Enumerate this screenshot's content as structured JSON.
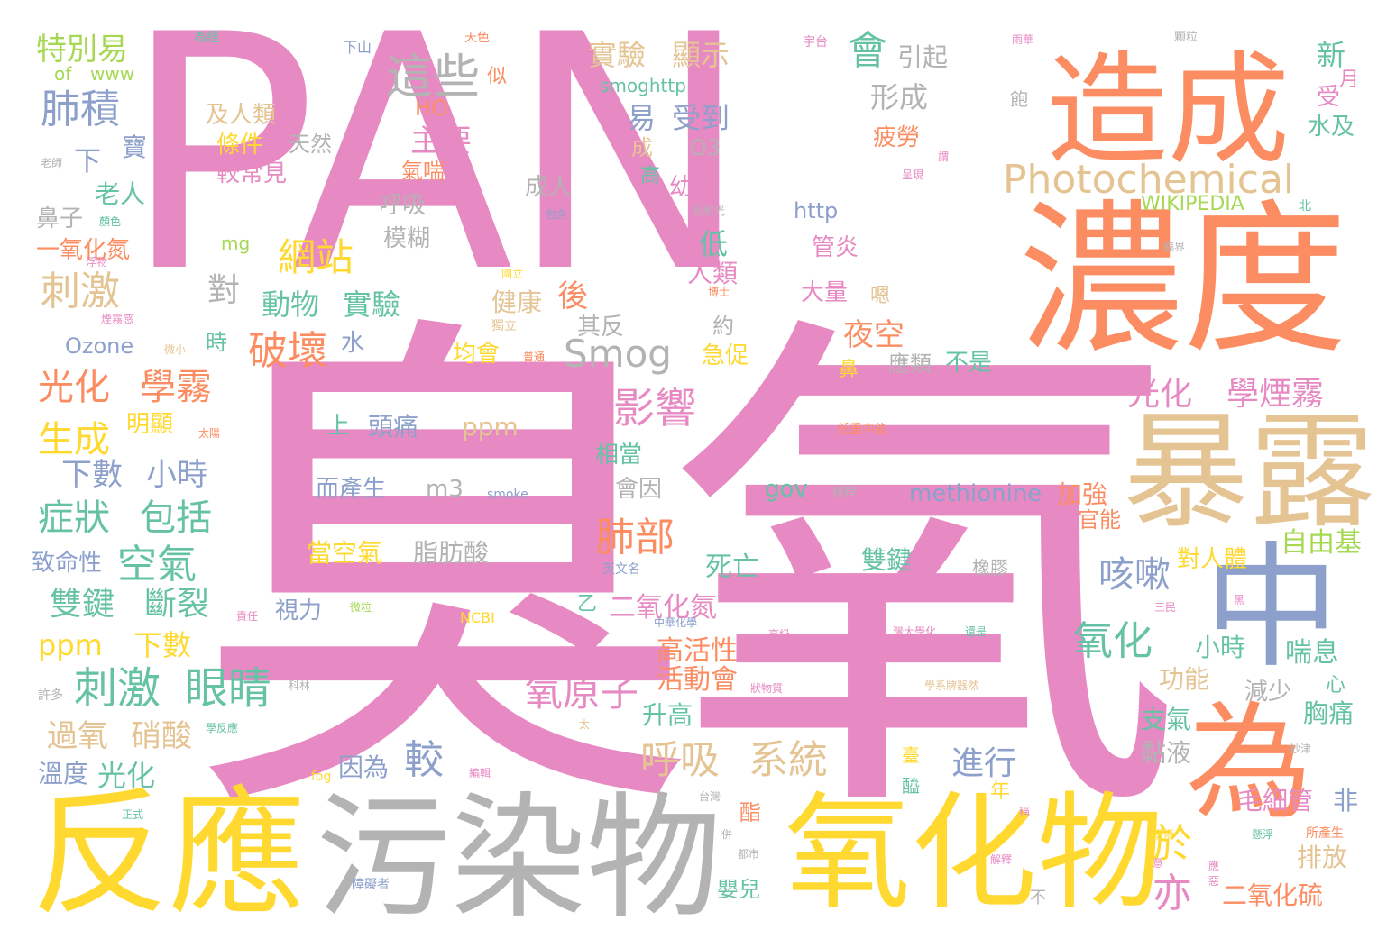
{
  "wordcloud": {
    "palette": {
      "pink": "#e78ac3",
      "orange": "#fc8d62",
      "green": "#66c2a5",
      "blue": "#8da0cb",
      "lime": "#a6d854",
      "yellow": "#ffd92f",
      "tan": "#e5c494",
      "gray": "#b3b3b3"
    },
    "words": [
      {
        "text": "PAN",
        "color": "pink"
      },
      {
        "text": "臭氧",
        "color": "pink"
      },
      {
        "text": "造成",
        "color": "orange"
      },
      {
        "text": "濃度",
        "color": "orange"
      },
      {
        "text": "暴露",
        "color": "tan"
      },
      {
        "text": "中",
        "color": "blue"
      },
      {
        "text": "為",
        "color": "orange"
      },
      {
        "text": "反應",
        "color": "yellow"
      },
      {
        "text": "污染物",
        "color": "gray"
      },
      {
        "text": "氧化物",
        "color": "yellow"
      },
      {
        "text": "Photochemical",
        "color": "tan"
      },
      {
        "text": "這些",
        "color": "gray"
      },
      {
        "text": "會",
        "color": "green"
      },
      {
        "text": "特別易",
        "color": "lime"
      },
      {
        "text": "肺積",
        "color": "blue"
      },
      {
        "text": "實驗",
        "color": "tan"
      },
      {
        "text": "顯示",
        "color": "tan"
      },
      {
        "text": "引起",
        "color": "gray"
      },
      {
        "text": "新",
        "color": "green"
      },
      {
        "text": "形成",
        "color": "gray"
      },
      {
        "text": "易",
        "color": "blue"
      },
      {
        "text": "受到",
        "color": "blue"
      },
      {
        "text": "主要",
        "color": "pink"
      },
      {
        "text": "網站",
        "color": "yellow"
      },
      {
        "text": "刺激",
        "color": "tan"
      },
      {
        "text": "對",
        "color": "gray"
      },
      {
        "text": "動物",
        "color": "green"
      },
      {
        "text": "實驗",
        "color": "green"
      },
      {
        "text": "破壞",
        "color": "orange"
      },
      {
        "text": "Smog",
        "color": "gray"
      },
      {
        "text": "光化",
        "color": "orange"
      },
      {
        "text": "學霧",
        "color": "orange"
      },
      {
        "text": "生成",
        "color": "yellow"
      },
      {
        "text": "影響",
        "color": "pink"
      },
      {
        "text": "下數",
        "color": "blue"
      },
      {
        "text": "小時",
        "color": "blue"
      },
      {
        "text": "症狀",
        "color": "green"
      },
      {
        "text": "包括",
        "color": "green"
      },
      {
        "text": "空氣",
        "color": "green"
      },
      {
        "text": "雙鍵",
        "color": "green"
      },
      {
        "text": "斷裂",
        "color": "green"
      },
      {
        "text": "肺部",
        "color": "orange"
      },
      {
        "text": "咳嗽",
        "color": "blue"
      },
      {
        "text": "氧化",
        "color": "green"
      },
      {
        "text": "刺激",
        "color": "green"
      },
      {
        "text": "眼睛",
        "color": "green"
      },
      {
        "text": "呼吸",
        "color": "tan"
      },
      {
        "text": "系統",
        "color": "tan"
      },
      {
        "text": "光化",
        "color": "pink"
      },
      {
        "text": "學煙霧",
        "color": "pink"
      },
      {
        "text": "氧原子",
        "color": "pink"
      },
      {
        "text": "進行",
        "color": "blue"
      },
      {
        "text": "亦",
        "color": "pink"
      },
      {
        "text": "於",
        "color": "yellow"
      },
      {
        "text": "毛細管",
        "color": "pink"
      },
      {
        "text": "二氧化硫",
        "color": "orange"
      },
      {
        "text": "ppm",
        "color": "yellow"
      },
      {
        "text": "下數",
        "color": "yellow"
      },
      {
        "text": "過氧",
        "color": "tan"
      },
      {
        "text": "硝酸",
        "color": "tan"
      },
      {
        "text": "光化",
        "color": "green"
      },
      {
        "text": "溫度",
        "color": "blue"
      },
      {
        "text": "較",
        "color": "blue"
      },
      {
        "text": "因為",
        "color": "blue"
      },
      {
        "text": "methionine",
        "color": "blue"
      },
      {
        "text": "加強",
        "color": "orange"
      },
      {
        "text": "自由基",
        "color": "lime"
      },
      {
        "text": "對人體",
        "color": "yellow"
      },
      {
        "text": "官能",
        "color": "orange"
      },
      {
        "text": "喘息",
        "color": "green"
      },
      {
        "text": "小時",
        "color": "green"
      },
      {
        "text": "功能",
        "color": "tan"
      },
      {
        "text": "減少",
        "color": "gray"
      },
      {
        "text": "胸痛",
        "color": "green"
      },
      {
        "text": "支氣",
        "color": "green"
      },
      {
        "text": "黏液",
        "color": "gray"
      },
      {
        "text": "排放",
        "color": "tan"
      },
      {
        "text": "非",
        "color": "blue"
      },
      {
        "text": "高活性",
        "color": "orange"
      },
      {
        "text": "活動會",
        "color": "orange"
      },
      {
        "text": "升高",
        "color": "green"
      },
      {
        "text": "死亡",
        "color": "green"
      },
      {
        "text": "二氧化氮",
        "color": "pink"
      },
      {
        "text": "雙鍵",
        "color": "green"
      },
      {
        "text": "脂肪酸",
        "color": "gray"
      },
      {
        "text": "當空氣",
        "color": "yellow"
      },
      {
        "text": "而產生",
        "color": "blue"
      },
      {
        "text": "m3",
        "color": "gray"
      },
      {
        "text": "頭痛",
        "color": "blue"
      },
      {
        "text": "上",
        "color": "green"
      },
      {
        "text": "ppm",
        "color": "tan"
      },
      {
        "text": "相當",
        "color": "green"
      },
      {
        "text": "會因",
        "color": "gray"
      },
      {
        "text": "gov",
        "color": "green"
      },
      {
        "text": "均會",
        "color": "yellow"
      },
      {
        "text": "其反",
        "color": "gray"
      },
      {
        "text": "急促",
        "color": "yellow"
      },
      {
        "text": "夜空",
        "color": "orange"
      },
      {
        "text": "不是",
        "color": "green"
      },
      {
        "text": "應類",
        "color": "gray"
      },
      {
        "text": "大量",
        "color": "pink"
      },
      {
        "text": "管炎",
        "color": "pink"
      },
      {
        "text": "健康",
        "color": "tan"
      },
      {
        "text": "後",
        "color": "orange"
      },
      {
        "text": "低",
        "color": "green"
      },
      {
        "text": "人類",
        "color": "pink"
      },
      {
        "text": "約",
        "color": "gray"
      },
      {
        "text": "Ozone",
        "color": "blue"
      },
      {
        "text": "時",
        "color": "green"
      },
      {
        "text": "水",
        "color": "blue"
      },
      {
        "text": "明顯",
        "color": "yellow"
      },
      {
        "text": "視力",
        "color": "blue"
      },
      {
        "text": "致命性",
        "color": "blue"
      },
      {
        "text": "老人",
        "color": "green"
      },
      {
        "text": "下",
        "color": "blue"
      },
      {
        "text": "鼻子",
        "color": "gray"
      },
      {
        "text": "一氧化氮",
        "color": "orange"
      },
      {
        "text": "寶",
        "color": "blue"
      },
      {
        "text": "及人類",
        "color": "tan"
      },
      {
        "text": "條件",
        "color": "yellow"
      },
      {
        "text": "較常見",
        "color": "pink"
      },
      {
        "text": "天然",
        "color": "gray"
      },
      {
        "text": "呼吸",
        "color": "gray"
      },
      {
        "text": "模糊",
        "color": "gray"
      },
      {
        "text": "成人",
        "color": "gray"
      },
      {
        "text": "氣喘",
        "color": "orange"
      },
      {
        "text": "HO",
        "color": "orange"
      },
      {
        "text": "O3",
        "color": "gray"
      },
      {
        "text": "幼童",
        "color": "pink"
      },
      {
        "text": "疲勞",
        "color": "orange"
      },
      {
        "text": "http",
        "color": "blue"
      },
      {
        "text": "WIKIPEDIA",
        "color": "lime"
      },
      {
        "text": "水及",
        "color": "green"
      },
      {
        "text": "受",
        "color": "pink"
      },
      {
        "text": "月",
        "color": "pink"
      },
      {
        "text": "smoghttp",
        "color": "green"
      },
      {
        "text": "mg",
        "color": "lime"
      },
      {
        "text": "of",
        "color": "lime"
      },
      {
        "text": "www",
        "color": "lime"
      },
      {
        "text": "為經",
        "color": "green"
      },
      {
        "text": "下山",
        "color": "blue"
      },
      {
        "text": "天色",
        "color": "orange"
      },
      {
        "text": "似",
        "color": "orange"
      },
      {
        "text": "宇台",
        "color": "pink"
      },
      {
        "text": "雨華",
        "color": "pink"
      },
      {
        "text": "顆粒",
        "color": "gray"
      },
      {
        "text": "飽",
        "color": "gray"
      },
      {
        "text": "老師",
        "color": "gray"
      },
      {
        "text": "顏色",
        "color": "green"
      },
      {
        "text": "包含",
        "color": "blue"
      },
      {
        "text": "反射光",
        "color": "gray"
      },
      {
        "text": "北",
        "color": "green"
      },
      {
        "text": "呈現",
        "color": "pink"
      },
      {
        "text": "謂",
        "color": "pink"
      },
      {
        "text": "浮物",
        "color": "pink"
      },
      {
        "text": "國立",
        "color": "yellow"
      },
      {
        "text": "博士",
        "color": "orange"
      },
      {
        "text": "臨界",
        "color": "gray"
      },
      {
        "text": "煙霧感",
        "color": "pink"
      },
      {
        "text": "獨立",
        "color": "tan"
      },
      {
        "text": "嗯",
        "color": "tan"
      },
      {
        "text": "鼻",
        "color": "yellow"
      },
      {
        "text": "微小",
        "color": "tan"
      },
      {
        "text": "什麼",
        "color": "pink"
      },
      {
        "text": "普通",
        "color": "orange"
      },
      {
        "text": "太陽",
        "color": "orange"
      },
      {
        "text": "低重中能",
        "color": "orange"
      },
      {
        "text": "smoke",
        "color": "blue"
      },
      {
        "text": "視程",
        "color": "gray"
      },
      {
        "text": "英文名",
        "color": "blue"
      },
      {
        "text": "橡膠",
        "color": "gray"
      },
      {
        "text": "乙",
        "color": "green"
      },
      {
        "text": "三民",
        "color": "pink"
      },
      {
        "text": "黑",
        "color": "pink"
      },
      {
        "text": "中華化學",
        "color": "blue"
      },
      {
        "text": "微粒",
        "color": "lime"
      },
      {
        "text": "責任",
        "color": "pink"
      },
      {
        "text": "NCBI",
        "color": "yellow"
      },
      {
        "text": "高級",
        "color": "pink"
      },
      {
        "text": "灣大學化",
        "color": "pink"
      },
      {
        "text": "還是",
        "color": "green"
      },
      {
        "text": "狀物質",
        "color": "pink"
      },
      {
        "text": "學系牌器然",
        "color": "tan"
      },
      {
        "text": "心",
        "color": "green"
      },
      {
        "text": "許多",
        "color": "gray"
      },
      {
        "text": "科林",
        "color": "gray"
      },
      {
        "text": "學反應",
        "color": "green"
      },
      {
        "text": "太",
        "color": "tan"
      },
      {
        "text": "妙津",
        "color": "gray"
      },
      {
        "text": "編輯",
        "color": "pink"
      },
      {
        "text": "fog",
        "color": "yellow"
      },
      {
        "text": "臺",
        "color": "yellow"
      },
      {
        "text": "醯",
        "color": "green"
      },
      {
        "text": "酯",
        "color": "orange"
      },
      {
        "text": "年",
        "color": "yellow"
      },
      {
        "text": "台灣",
        "color": "gray"
      },
      {
        "text": "正式",
        "color": "green"
      },
      {
        "text": "併",
        "color": "gray"
      },
      {
        "text": "都市",
        "color": "gray"
      },
      {
        "text": "稱",
        "color": "pink"
      },
      {
        "text": "學術",
        "color": "yellow"
      },
      {
        "text": "懸浮",
        "color": "green"
      },
      {
        "text": "所產生",
        "color": "orange"
      },
      {
        "text": "解釋",
        "color": "pink"
      },
      {
        "text": "嬰兒",
        "color": "green"
      },
      {
        "text": "障礙者",
        "color": "blue"
      },
      {
        "text": "不",
        "color": "gray"
      },
      {
        "text": "意",
        "color": "pink"
      },
      {
        "text": "應",
        "color": "pink"
      },
      {
        "text": "惡",
        "color": "pink"
      },
      {
        "text": "成",
        "color": "tan"
      },
      {
        "text": "高",
        "color": "green"
      }
    ]
  }
}
